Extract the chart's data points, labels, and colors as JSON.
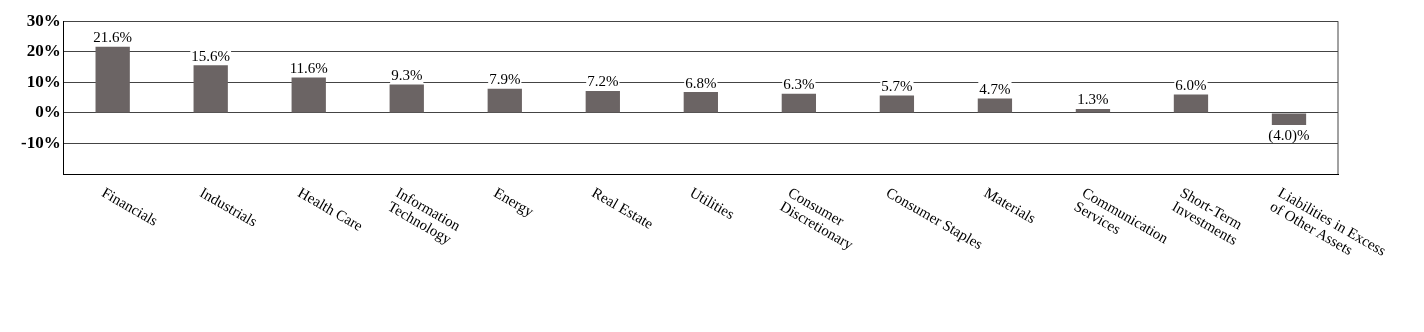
{
  "chart_data": {
    "type": "bar",
    "categories": [
      "Financials",
      "Industrials",
      "Health Care",
      "Information Technology",
      "Energy",
      "Real Estate",
      "Utilities",
      "Consumer Discretionary",
      "Consumer Staples",
      "Materials",
      "Communication Services",
      "Short-Term Investments",
      "Liabilities in Excess of Other Assets"
    ],
    "values": [
      21.6,
      15.6,
      11.6,
      9.3,
      7.9,
      7.2,
      6.8,
      6.3,
      5.7,
      4.7,
      1.3,
      6.0,
      -4.0
    ],
    "value_labels": [
      "21.6%",
      "15.6%",
      "11.6%",
      "9.3%",
      "7.9%",
      "7.2%",
      "6.8%",
      "6.3%",
      "5.7%",
      "4.7%",
      "1.3%",
      "6.0%",
      "(4.0)%"
    ],
    "color": "#6b6464",
    "ylim": [
      -20,
      30
    ],
    "yticks": [
      {
        "value": -10,
        "label": "-10%"
      },
      {
        "value": 0,
        "label": "0%"
      },
      {
        "value": 10,
        "label": "10%"
      },
      {
        "value": 20,
        "label": "20%"
      },
      {
        "value": 30,
        "label": "30%"
      }
    ],
    "grid": "y"
  }
}
